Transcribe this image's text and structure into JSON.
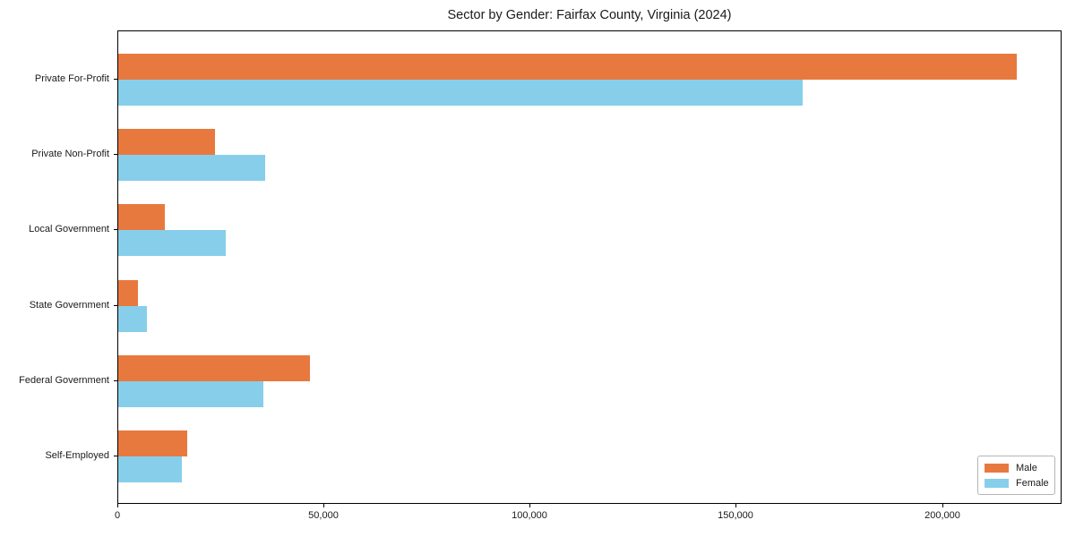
{
  "chart_data": {
    "type": "bar",
    "orientation": "horizontal",
    "title": "Sector by Gender: Fairfax County, Virginia (2024)",
    "categories": [
      "Private For-Profit",
      "Private Non-Profit",
      "Local Government",
      "State Government",
      "Federal Government",
      "Self-Employed"
    ],
    "series": [
      {
        "name": "Male",
        "color": "#e8793e",
        "values": [
          218000,
          23500,
          11300,
          4800,
          46500,
          16700
        ]
      },
      {
        "name": "Female",
        "color": "#87ceeb",
        "values": [
          166000,
          35700,
          26100,
          7000,
          35200,
          15400
        ]
      }
    ],
    "xlabel": "",
    "ylabel": "",
    "xlim": [
      0,
      229000
    ],
    "xticks": [
      0,
      50000,
      100000,
      150000,
      200000
    ],
    "xtick_labels": [
      "0",
      "50,000",
      "100,000",
      "150,000",
      "200,000"
    ],
    "legend_position": "lower right",
    "grid": false,
    "plot_border_color": "#000000",
    "background_color": "#ffffff"
  }
}
